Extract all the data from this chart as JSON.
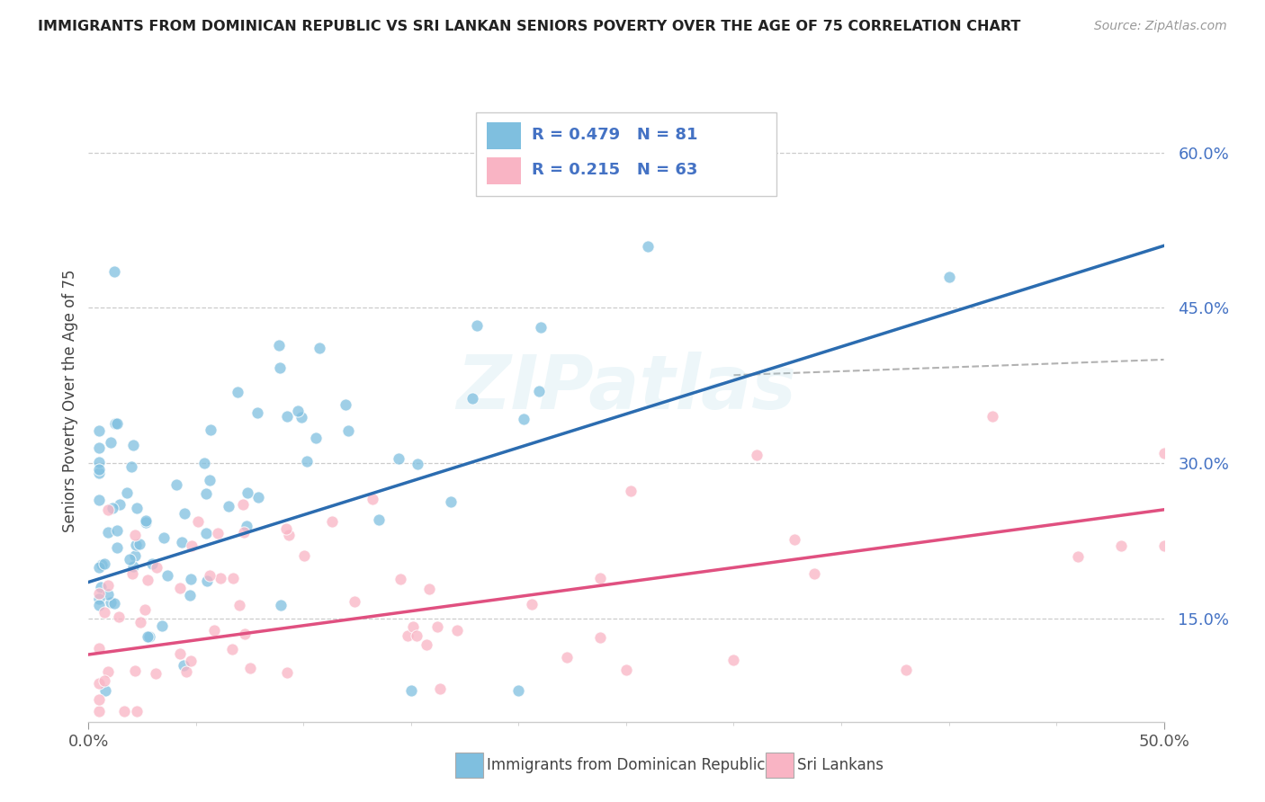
{
  "title": "IMMIGRANTS FROM DOMINICAN REPUBLIC VS SRI LANKAN SENIORS POVERTY OVER THE AGE OF 75 CORRELATION CHART",
  "source": "Source: ZipAtlas.com",
  "ylabel": "Seniors Poverty Over the Age of 75",
  "yticks_labels": [
    "15.0%",
    "30.0%",
    "45.0%",
    "60.0%"
  ],
  "ytick_vals": [
    0.15,
    0.3,
    0.45,
    0.6
  ],
  "xlim": [
    0.0,
    0.5
  ],
  "ylim": [
    0.05,
    0.67
  ],
  "blue_R": 0.479,
  "blue_N": 81,
  "pink_R": 0.215,
  "pink_N": 63,
  "blue_color": "#7fbfdf",
  "pink_color": "#f9b4c4",
  "blue_line_color": "#2b6cb0",
  "pink_line_color": "#e05080",
  "watermark_text": "ZIPatlas",
  "legend_label_blue": "Immigrants from Dominican Republic",
  "legend_label_pink": "Sri Lankans",
  "blue_line_intercept": 0.185,
  "blue_line_slope": 0.65,
  "pink_line_intercept": 0.115,
  "pink_line_slope": 0.28,
  "dash_line_start_x": 0.3,
  "dash_line_start_y": 0.385,
  "dash_line_end_x": 0.5,
  "dash_line_end_y": 0.4
}
